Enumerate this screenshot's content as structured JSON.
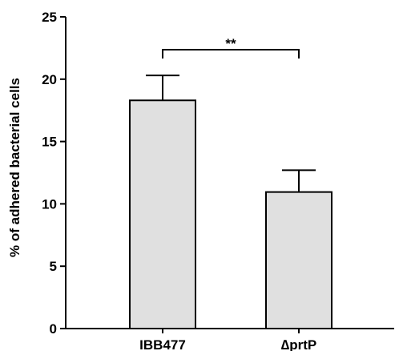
{
  "chart_data": {
    "type": "bar",
    "categories": [
      "IBB477",
      "∆prtP"
    ],
    "values": [
      18.3,
      10.95
    ],
    "error": [
      2.0,
      1.75
    ],
    "ylabel": "% of adhered bacterial cells",
    "xlabel": "",
    "ylim": [
      0,
      25
    ],
    "yticks": [
      0,
      5,
      10,
      15,
      20,
      25
    ],
    "grid": false,
    "bar_color": "#e0e0e0",
    "significance": {
      "between": [
        0,
        1
      ],
      "label": "**"
    }
  }
}
